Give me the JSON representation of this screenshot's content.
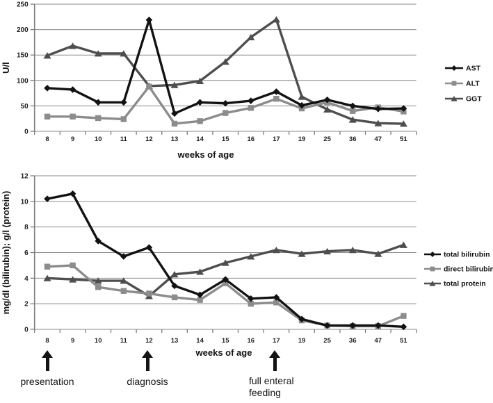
{
  "colors": {
    "black_series": "#121212",
    "gray_series": "#8c8c8c",
    "darkgray_series": "#4e4e4e",
    "gridline": "#8a8a8a",
    "axis": "#7d7d7d",
    "text": "#1f1f1f",
    "arrow": "#141414"
  },
  "chart_data": [
    {
      "type": "line",
      "title": "",
      "xlabel": "weeks of age",
      "ylabel": "U/l",
      "categories": [
        "8",
        "9",
        "10",
        "11",
        "12",
        "13",
        "14",
        "15",
        "16",
        "17",
        "19",
        "25",
        "36",
        "47",
        "51"
      ],
      "ylim": [
        0,
        250
      ],
      "yticks": [
        0,
        50,
        100,
        150,
        200,
        250
      ],
      "grid": true,
      "legend_position": "right",
      "series": [
        {
          "name": "AST",
          "marker": "diamond",
          "color": "#121212",
          "values": [
            85,
            82,
            57,
            57,
            219,
            35,
            57,
            55,
            60,
            78,
            51,
            62,
            50,
            44,
            45
          ]
        },
        {
          "name": "ALT",
          "marker": "square",
          "color": "#8c8c8c",
          "values": [
            29,
            29,
            26,
            24,
            88,
            15,
            20,
            36,
            46,
            64,
            45,
            57,
            40,
            47,
            39
          ]
        },
        {
          "name": "GGT",
          "marker": "triangle",
          "color": "#4e4e4e",
          "values": [
            149,
            168,
            153,
            153,
            89,
            91,
            99,
            137,
            185,
            220,
            68,
            43,
            23,
            16,
            15
          ]
        }
      ]
    },
    {
      "type": "line",
      "title": "",
      "xlabel": "weeks of age",
      "ylabel": "mg/dl (bilirubin); g/l (protein)",
      "categories": [
        "8",
        "9",
        "10",
        "11",
        "12",
        "13",
        "14",
        "15",
        "16",
        "17",
        "19",
        "25",
        "36",
        "47",
        "51"
      ],
      "ylim": [
        0,
        12
      ],
      "yticks": [
        0,
        2,
        4,
        6,
        8,
        10,
        12
      ],
      "grid": true,
      "legend_position": "right",
      "series": [
        {
          "name": "total bilirubin",
          "marker": "diamond",
          "color": "#121212",
          "values": [
            10.2,
            10.6,
            6.9,
            5.7,
            6.4,
            3.4,
            2.7,
            3.9,
            2.4,
            2.5,
            0.8,
            0.3,
            0.3,
            0.3,
            0.2
          ]
        },
        {
          "name": "direct bilirubin",
          "marker": "square",
          "color": "#8c8c8c",
          "values": [
            4.9,
            5.0,
            3.3,
            3.0,
            2.8,
            2.5,
            2.3,
            3.6,
            2.0,
            2.1,
            0.7,
            0.3,
            0.25,
            0.25,
            1.05
          ]
        },
        {
          "name": "total protein",
          "marker": "triangle",
          "color": "#4e4e4e",
          "values": [
            4.0,
            3.9,
            3.8,
            3.8,
            2.6,
            4.3,
            4.5,
            5.2,
            5.7,
            6.2,
            5.9,
            6.1,
            6.2,
            5.9,
            6.6
          ]
        }
      ]
    }
  ],
  "annotations": [
    {
      "label": "presentation",
      "week": "8"
    },
    {
      "label": "diagnosis",
      "week": "12"
    },
    {
      "label": "full enteral\nfeeding",
      "week": "17"
    }
  ]
}
